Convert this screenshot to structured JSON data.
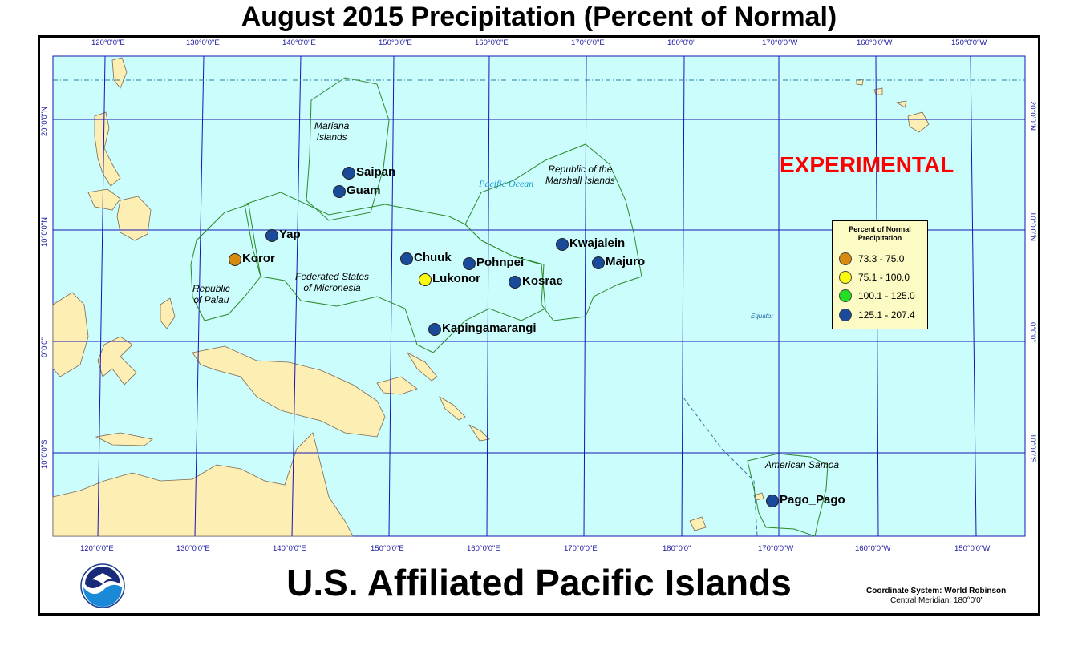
{
  "title": "August 2015 Precipitation (Percent of Normal)",
  "subtitle": "U.S. Affiliated Pacific Islands",
  "watermark": "EXPERIMENTAL",
  "coordinate_system": "Coordinate System: World Robinson",
  "central_meridian": "Central Meridian: 180°0'0\"",
  "ocean_label": "Pacific Ocean",
  "equator_label": "Equator",
  "colors": {
    "ocean": "#ccfdfd",
    "land": "#fdeeb4",
    "grid": "#1616b4",
    "boundary": "#2a8a2a",
    "watermark": "#ff0000"
  },
  "longitude_labels": [
    "120°0'0\"E",
    "130°0'0\"E",
    "140°0'0\"E",
    "150°0'0\"E",
    "160°0'0\"E",
    "170°0'0\"E",
    "180°0'0\"",
    "170°0'0\"W",
    "160°0'0\"W",
    "150°0'0\"W"
  ],
  "latitude_labels": [
    "20°0'0\"N",
    "10°0'0\"N",
    "0°0'0\"",
    "10°0'0\"S"
  ],
  "regions": [
    {
      "name": "Mariana Islands",
      "line1": "Mariana",
      "line2": "Islands"
    },
    {
      "name": "Republic of the Marshall Islands",
      "line1": "Republic of the",
      "line2": "Marshall Islands"
    },
    {
      "name": "Federated States of Micronesia",
      "line1": "Federated States",
      "line2": "of Micronesia"
    },
    {
      "name": "Republic of Palau",
      "line1": "Republic",
      "line2": "of Palau"
    },
    {
      "name": "American Samoa",
      "line1": "American Samoa",
      "line2": ""
    }
  ],
  "legend": {
    "title_line1": "Percent of Normal",
    "title_line2": "Precipitation",
    "classes": [
      {
        "label": "73.3 - 75.0",
        "color": "#d88a10"
      },
      {
        "label": "75.1 - 100.0",
        "color": "#fbfb10"
      },
      {
        "label": "100.1 - 125.0",
        "color": "#22e022"
      },
      {
        "label": "125.1 - 207.4",
        "color": "#1a4a9a"
      }
    ]
  },
  "stations": [
    {
      "name": "Saipan",
      "class": 3
    },
    {
      "name": "Guam",
      "class": 3
    },
    {
      "name": "Yap",
      "class": 3
    },
    {
      "name": "Koror",
      "class": 0
    },
    {
      "name": "Chuuk",
      "class": 3
    },
    {
      "name": "Pohnpei",
      "class": 3
    },
    {
      "name": "Lukonor",
      "class": 1
    },
    {
      "name": "Kosrae",
      "class": 3
    },
    {
      "name": "Kwajalein",
      "class": 3
    },
    {
      "name": "Majuro",
      "class": 3
    },
    {
      "name": "Kapingamarangi",
      "class": 3
    },
    {
      "name": "Pago_Pago",
      "class": 3
    }
  ]
}
